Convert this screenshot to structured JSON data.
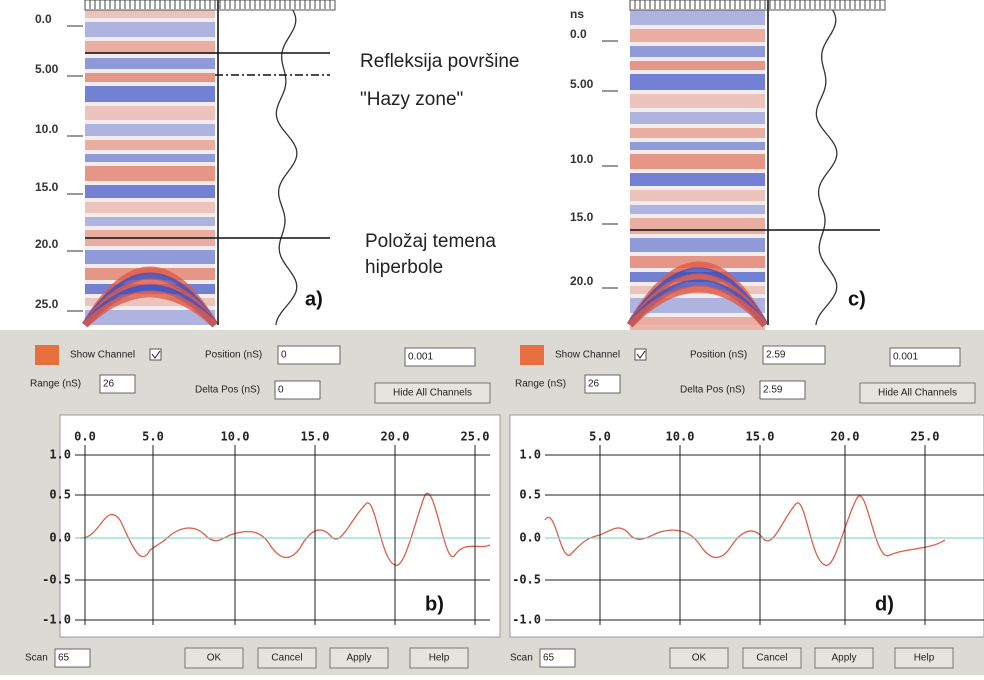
{
  "panels": [
    {
      "ticks": [
        "0.0",
        "5.00",
        "10.0",
        "15.0",
        "20.0",
        "25.0"
      ],
      "label": "a)"
    },
    {
      "unit": "ns",
      "ticks": [
        "0.0",
        "5.00",
        "10.0",
        "15.0",
        "20.0"
      ],
      "label": "c)"
    }
  ],
  "annotations": [
    "Refleksija površine",
    "\"Hazy zone\"",
    "Položaj temena",
    "hiperbole"
  ],
  "controls": [
    {
      "show_channel": "Show Channel",
      "position_label": "Position (nS)",
      "position": "0",
      "step": "0.001",
      "range_label": "Range (nS)",
      "range": "26",
      "delta_label": "Delta Pos (nS)",
      "delta": "0",
      "hide": "Hide All Channels",
      "scan_label": "Scan",
      "scan": "65",
      "buttons": [
        "OK",
        "Cancel",
        "Apply",
        "Help"
      ]
    },
    {
      "show_channel": "Show Channel",
      "position_label": "Position (nS)",
      "position": "2.59",
      "step": "0.001",
      "range_label": "Range (nS)",
      "range": "26",
      "delta_label": "Delta Pos (nS)",
      "delta": "2.59",
      "hide": "Hide All Channels",
      "scan_label": "Scan",
      "scan": "65",
      "buttons": [
        "OK",
        "Cancel",
        "Apply",
        "Help"
      ]
    }
  ],
  "plots": [
    {
      "xticks": [
        "0.0",
        "5.0",
        "10.0",
        "15.0",
        "20.0",
        "25.0"
      ],
      "yticks": [
        "1.0",
        "0.5",
        "0.0",
        "-0.5",
        "-1.0"
      ],
      "label": "b)"
    },
    {
      "xticks": [
        "5.0",
        "10.0",
        "15.0",
        "20.0",
        "25.0"
      ],
      "yticks": [
        "1.0",
        "0.5",
        "0.0",
        "-0.5",
        "-1.0"
      ],
      "label": "d)"
    }
  ]
}
